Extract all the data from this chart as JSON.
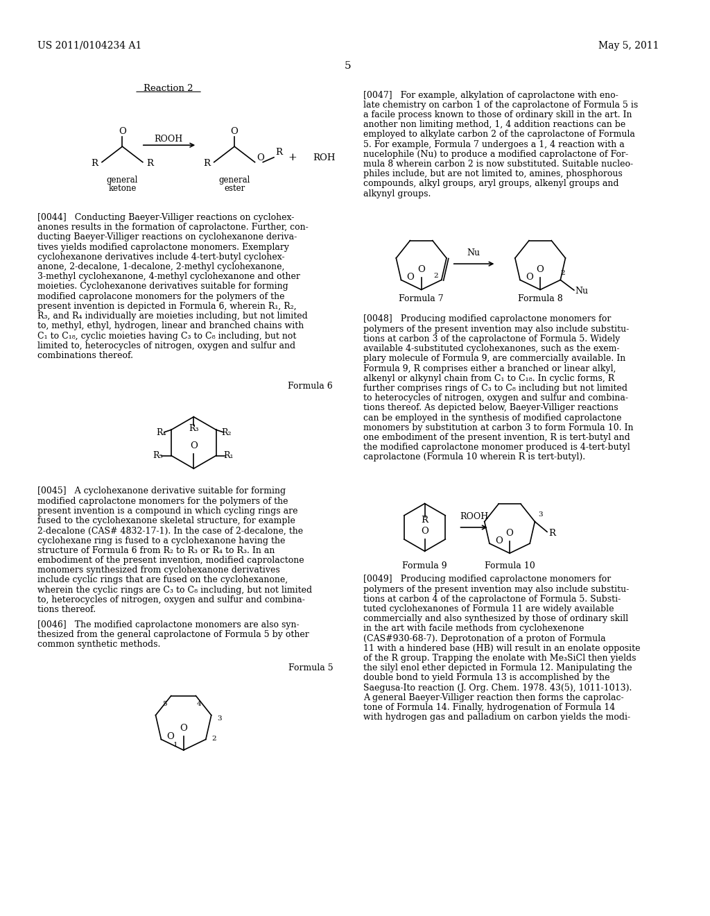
{
  "background_color": "#ffffff",
  "header_left": "US 2011/0104234 A1",
  "header_right": "May 5, 2011",
  "page_number": "5",
  "font_size_body": 9.5,
  "font_size_header": 10,
  "font_size_label": 9,
  "paragraphs": {
    "p0044": "[0044] Conducting Baeyer-Villiger reactions on cyclohexanones results in the formation of caprolactone. Further, conducting Baeyer-Villiger reactions on cyclohexanone derivatives yields modified caprolactone monomers. Exemplary cyclohexanone derivatives include 4-tert-butyl cyclohexanone, 2-decalone, 1-decalone, 2-methyl cyclohexanone, 3-methyl cyclohexanone, 4-methyl cyclohexanone and other moieties. Cyclohexanone derivatives suitable for forming modified caprolacone monomers for the polymers of the present invention is depicted in Formula 6, wherein R₁, R₂, R₃, and R₄ individually are moieties including, but not limited to, methyl, ethyl, hydrogen, linear and branched chains with C₁ to C₁₈, cyclic moieties having C₃ to C₈ including, but not limited to, heterocycles of nitrogen, oxygen and sulfur and combinations thereof.",
    "p0045": "[0045] A cyclohexanone derivative suitable for forming modified caprolactone monomers for the polymers of the present invention is a compound in which cycling rings are fused to the cyclohexanone skeletal structure, for example 2-decalone (CAS# 4832-17-1). In the case of 2-decalone, the cyclohexane ring is fused to a cyclohexanone having the structure of Formula 6 from R₂ to R₃ or R₄ to R₃. In an embodiment of the present invention, modified caprolactone monomers synthesized from cyclohexanone derivatives include cyclic rings that are fused on the cyclohexanone, wherein the cyclic rings are C₃ to C₈ including, but not limited to, heterocycles of nitrogen, oxygen and sulfur and combinations thereof.",
    "p0046": "[0046] The modified caprolactone monomers are also synthesized from the general caprolactone of Formula 5 by other common synthetic methods.",
    "p0047": "[0047] For example, alkylation of caprolactone with enolate chemistry on carbon 1 of the caprolactone of Formula 5 is a facile process known to those of ordinary skill in the art. In another non limiting method, 1, 4 addition reactions can be employed to alkylate carbon 2 of the caprolactone of Formula 5. For example, Formula 7 undergoes a 1, 4 reaction with a nucelophile (Nu) to produce a modified caprolactone of Formula 8 wherein carbon 2 is now substituted. Suitable nucleophiles include, but are not limited to, amines, phosphorous compounds, alkyl groups, aryl groups, alkenyl groups and alkynyl groups.",
    "p0048": "[0048] Producing modified caprolactone monomers for polymers of the present invention may also include substitutions at carbon 3 of the caprolactone of Formula 5. Widely available 4-substituted cyclohexanones, such as the exemplary molecule of Formula 9, are commercially available. In Formula 9, R comprises either a branched or linear alkyl, alkenyl or alkynyl chain from C₁ to C₁₈. In cyclic forms, R further comprises rings of C₃ to C₈ including but not limited to heterocycles of nitrogen, oxygen and sulfur and combinations thereof. As depicted below, Baeyer-Villiger reactions can be employed in the synthesis of modified caprolactone monomers by substitution at carbon 3 to form Formula 10. In one embodiment of the present invention, R is tert-butyl and the modified caprolactone monomer produced is 4-tert-butyl caprolactone (Formula 10 wherein R is tert-butyl).",
    "p0049_partial": "[0049] Producing modified caprolactone monomers for polymers of the present invention may also include substitutions at carbon 4 of the caprolactone of Formula 5. Substituted cyclohexanones of Formula 11 are widely available commercially and also synthesized by those of ordinary skill in the art with facile methods from cyclohexenone (CAS#930-68-7). Deprotonation of a proton of Formula 11 with a hindered base (HB) will result in an enolate opposite of the R group. Trapping the enolate with Me₃SiCl then yields the silyl enol ether depicted in Formula 12. Manipulating the double bond to yield Formula 13 is accomplished by the Saegusa-Ito reaction (J. Org. Chem. 1978. 43(5), 1011-1013). A general Baeyer-Villiger reaction then forms the caprolactone of Formula 14. Finally, hydrogenation of Formula 14 with hydrogen gas and palladium on carbon yields the modi-"
  }
}
